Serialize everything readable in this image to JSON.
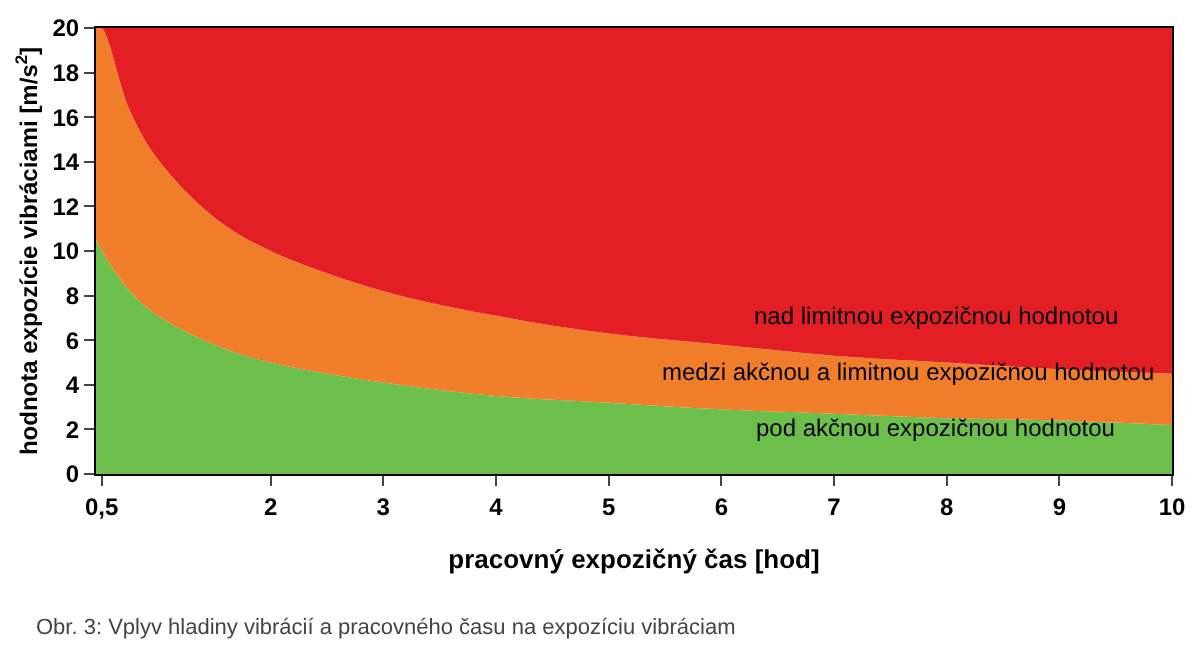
{
  "chart_data": {
    "type": "area",
    "stacked": true,
    "xlabel": "pracovný expozičný čas [hod]",
    "ylabel": "hodnota expozície vibráciami [m/s$^{2}$]",
    "x": [
      0.45,
      0.5,
      0.75,
      1,
      1.5,
      2,
      3,
      4,
      5,
      6,
      7,
      8,
      9,
      10
    ],
    "series": [
      {
        "color": "#6cbf4b",
        "values": [
          10.5,
          10.0,
          8.2,
          7.1,
          5.8,
          5.0,
          4.1,
          3.5,
          3.2,
          2.9,
          2.7,
          2.5,
          2.4,
          2.2
        ]
      },
      {
        "color": "#f07d2a",
        "values": [
          9.5,
          10.0,
          8.1,
          7.0,
          5.7,
          5.0,
          4.1,
          3.6,
          3.1,
          2.9,
          2.6,
          2.5,
          2.3,
          2.3
        ]
      },
      {
        "color": "#e31e24",
        "values": [
          0,
          0,
          3.7,
          5.9,
          8.5,
          10.0,
          11.8,
          12.9,
          13.7,
          14.2,
          14.7,
          15.0,
          15.3,
          15.5
        ]
      }
    ],
    "xlim": [
      0.45,
      10
    ],
    "xticks": [
      {
        "value": 0.5,
        "label": "0,5"
      },
      2,
      3,
      4,
      5,
      6,
      7,
      8,
      9,
      10
    ],
    "ylim": [
      0,
      20
    ],
    "yticks": [
      0,
      2,
      4,
      6,
      8,
      10,
      12,
      14,
      16,
      18,
      20
    ],
    "annotations": [
      "nad limitnou expozičnou hodnotou",
      "medzi akčnou a limitnou expozičnou hodnotou",
      "pod akčnou expozičnou hodnotou",
      "Obr. 3: Vplyv hladiny vibrácií a pracovného času na expozíciu vibráciam"
    ]
  }
}
